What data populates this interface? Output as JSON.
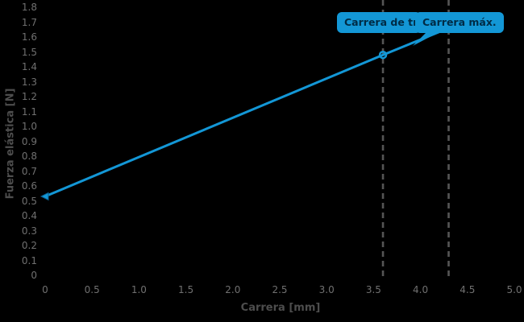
{
  "chart_data": {
    "type": "line",
    "title": "",
    "xlabel": "Carrera [mm]",
    "ylabel": "Fuerza elástica [N]",
    "xlim": [
      0,
      5.0
    ],
    "ylim": [
      0,
      1.8
    ],
    "x_tick_step": 0.5,
    "y_tick_step": 0.1,
    "grid": false,
    "legend": "none",
    "background_color": "#000000",
    "axis_title_color": "#4d4d4d",
    "tick_label_color": "#707070",
    "series": [
      {
        "name": "Fuerza elástica",
        "color": "#1397d6",
        "points": [
          {
            "x": 0.0,
            "y": 0.53
          },
          {
            "x": 3.6,
            "y": 1.48
          },
          {
            "x": 4.3,
            "y": 1.66
          }
        ],
        "circle_marker_at_x": 3.6,
        "start_marker_at_x": 0.0
      }
    ],
    "annotations": {
      "vlines": [
        {
          "x": 3.6,
          "style": "dashed",
          "color": "#555555",
          "label": "Carrera de trabajo"
        },
        {
          "x": 4.3,
          "style": "dashed",
          "color": "#555555",
          "label": "Carrera máx."
        }
      ],
      "tooltip_bg": "#1397d6",
      "tooltip_text_color": "#002b45"
    }
  }
}
